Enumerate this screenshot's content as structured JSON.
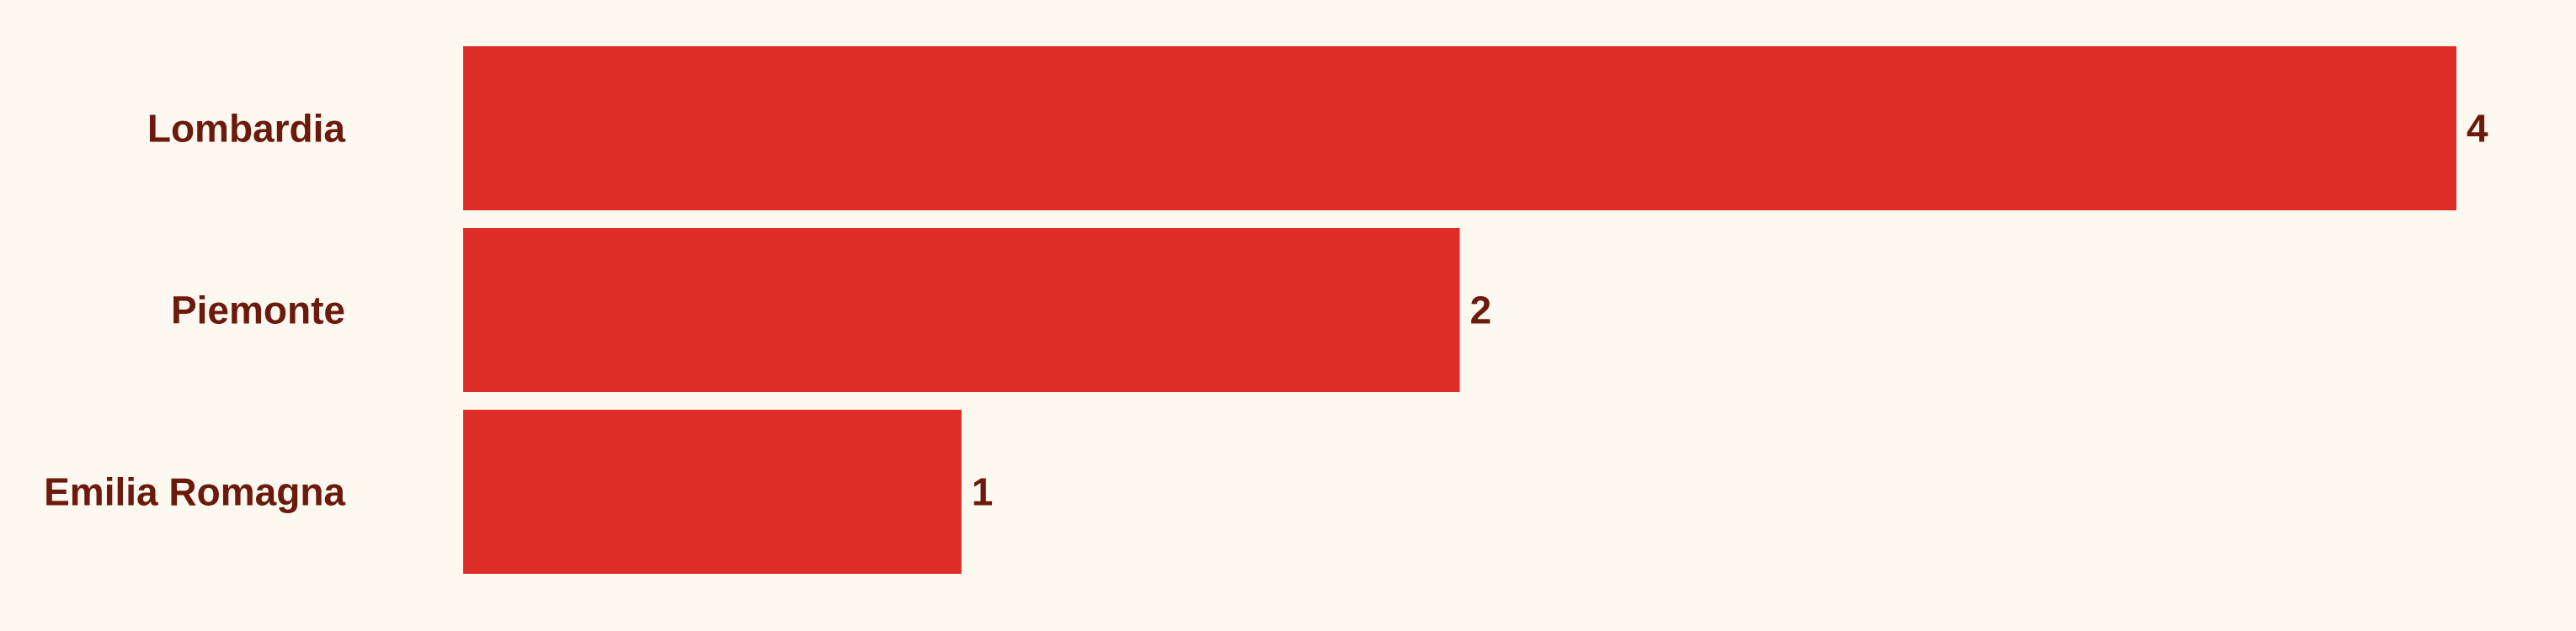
{
  "colors": {
    "background": "#fdf8f0",
    "bar": "#de2d26",
    "text": "#6b1a0c"
  },
  "chart_data": {
    "type": "bar",
    "orientation": "horizontal",
    "categories": [
      "Lombardia",
      "Piemonte",
      "Emilia Romagna"
    ],
    "values": [
      4,
      2,
      1
    ],
    "title": "",
    "xlabel": "",
    "ylabel": "",
    "xlim": [
      0,
      4
    ],
    "grid": false,
    "data_labels": true
  }
}
